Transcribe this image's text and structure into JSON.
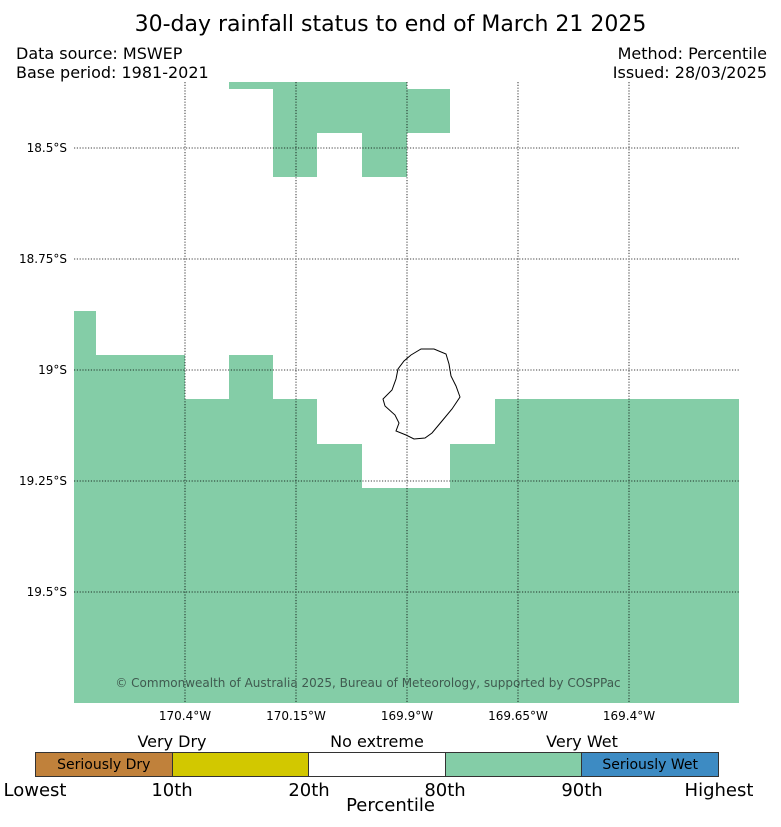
{
  "title": "30-day rainfall status to end of March 21 2025",
  "meta_left": [
    "Data source: MSWEP",
    "Base period: 1981-2021"
  ],
  "meta_right": [
    "Method: Percentile",
    "Issued: 28/03/2025"
  ],
  "map": {
    "lat_labels": [
      "18.5°S",
      "18.75°S",
      "19°S",
      "19.25°S",
      "19.5°S"
    ],
    "lon_labels": [
      "170.4°W",
      "170.15°W",
      "169.9°W",
      "169.65°W",
      "169.4°W"
    ],
    "wet_color": "#84cda7",
    "copyright": "© Commonwealth of Australia 2025, Bureau of Meteorology, supported by COSPPac"
  },
  "legend": {
    "groups": [
      "Very Dry",
      "No extreme",
      "Very Wet"
    ],
    "segments": [
      {
        "label": "Seriously Dry",
        "color": "#c0813b"
      },
      {
        "label": "",
        "color": "#d2c800"
      },
      {
        "label": "",
        "color": "#ffffff"
      },
      {
        "label": "",
        "color": "#84cda7"
      },
      {
        "label": "Seriously Wet",
        "color": "#3d8bc3"
      }
    ],
    "ticks": [
      "Lowest",
      "10th",
      "20th",
      "80th",
      "90th",
      "Highest"
    ],
    "axis_title": "Percentile"
  }
}
